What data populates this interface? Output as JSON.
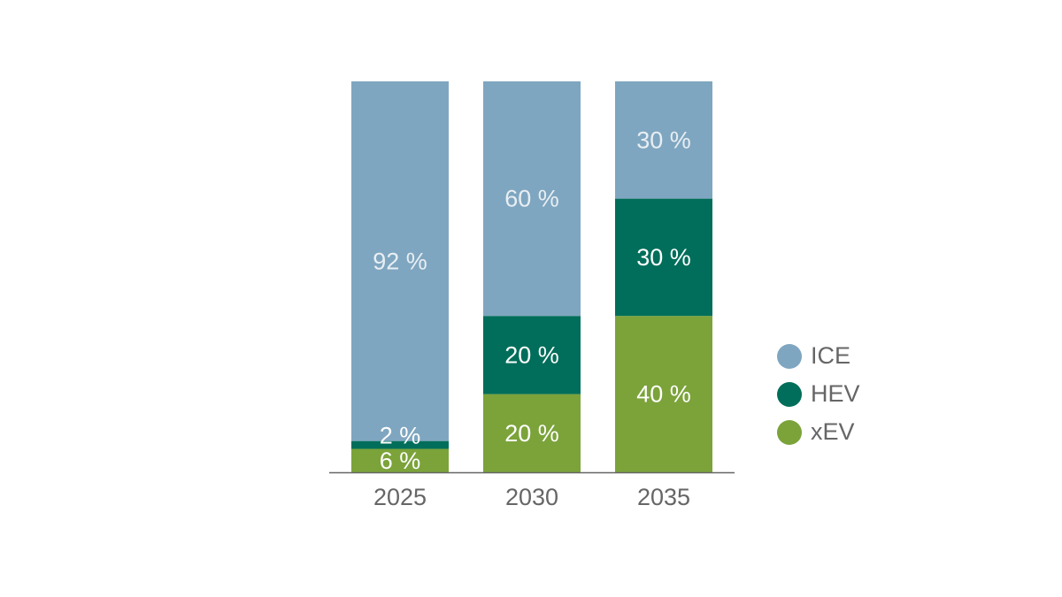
{
  "chart_data": {
    "type": "bar",
    "stacked": true,
    "categories": [
      "2025",
      "2030",
      "2035"
    ],
    "series": [
      {
        "name": "xEV",
        "values": [
          6,
          20,
          40
        ],
        "labels": [
          "6 %",
          "20 %",
          "40 %"
        ],
        "color": "#7BA33A"
      },
      {
        "name": "HEV",
        "values": [
          2,
          20,
          30
        ],
        "labels": [
          "2 %",
          "20 %",
          "30 %"
        ],
        "color": "#006E5A"
      },
      {
        "name": "ICE",
        "values": [
          92,
          60,
          30
        ],
        "labels": [
          "92 %",
          "60 %",
          "30 %"
        ],
        "color": "#7FA6C0"
      }
    ],
    "ylim": [
      0,
      100
    ],
    "grid": false,
    "legend_position": "right",
    "axis_color": "#666666",
    "tick_label_color": "#666666",
    "data_label_colors": {
      "ICE": "#E8EEF3",
      "HEV": "#FFFFFF",
      "xEV": "#FFFFFF"
    }
  },
  "legend": {
    "items": [
      {
        "label": "ICE",
        "color": "#7FA6C0"
      },
      {
        "label": "HEV",
        "color": "#006E5A"
      },
      {
        "label": "xEV",
        "color": "#7BA33A"
      }
    ]
  }
}
